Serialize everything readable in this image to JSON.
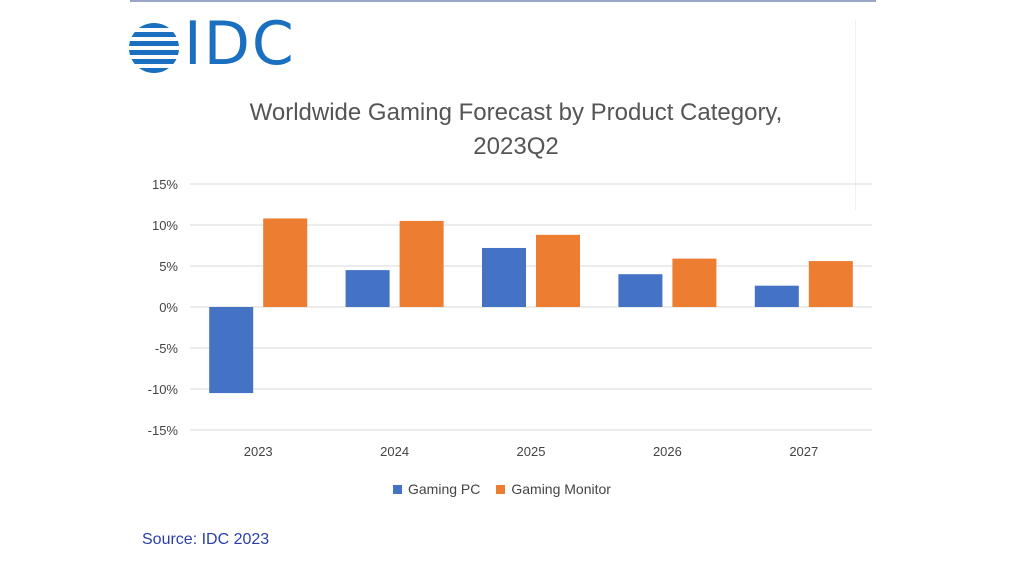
{
  "logo": {
    "text": "IDC"
  },
  "chart_data": {
    "type": "bar",
    "title": "Worldwide Gaming Forecast by Product Category, 2023Q2",
    "title_lines": [
      "Worldwide Gaming Forecast by Product Category,",
      "2023Q2"
    ],
    "categories": [
      "2023",
      "2024",
      "2025",
      "2026",
      "2027"
    ],
    "series": [
      {
        "name": "Gaming PC",
        "color": "#4472c4",
        "values": [
          -10.5,
          4.5,
          7.2,
          4.0,
          2.6
        ]
      },
      {
        "name": "Gaming Monitor",
        "color": "#ed7d31",
        "values": [
          10.8,
          10.5,
          8.8,
          5.9,
          5.6
        ]
      }
    ],
    "ylim": [
      -15,
      15
    ],
    "yticks": [
      15,
      10,
      5,
      0,
      -5,
      -10,
      -15
    ],
    "ytick_labels": [
      "15%",
      "10%",
      "5%",
      "0%",
      "-5%",
      "-10%",
      "-15%"
    ],
    "xlabel": "",
    "ylabel": "",
    "grid": true,
    "legend": "bottom-center"
  },
  "source": "Source: IDC 2023"
}
